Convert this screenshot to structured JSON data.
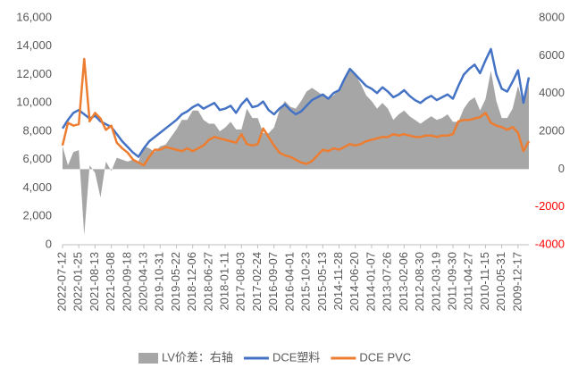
{
  "chart_data": {
    "type": "line",
    "categories": [
      "2022-07-12",
      null,
      null,
      "2022-01-25",
      null,
      null,
      "2021-08-13",
      null,
      null,
      "2021-03-08",
      null,
      null,
      "2020-09-18",
      null,
      null,
      "2020-04-13",
      null,
      null,
      "2019-10-31",
      null,
      null,
      "2019-05-22",
      null,
      null,
      "2018-12-06",
      null,
      null,
      "2018-06-27",
      null,
      null,
      "2018-01-11",
      null,
      null,
      "2017-08-03",
      null,
      null,
      "2017-02-24",
      null,
      null,
      "2016-09-07",
      null,
      null,
      "2016-04-01",
      null,
      null,
      "2015-10-23",
      null,
      null,
      "2015-05-13",
      null,
      null,
      "2014-11-28",
      null,
      null,
      "2014-06-20",
      null,
      null,
      "2014-01-07",
      null,
      null,
      "2013-07-26",
      null,
      null,
      "2013-02-06",
      null,
      null,
      "2012-08-30",
      null,
      null,
      "2012-03-19",
      null,
      null,
      "2011-09-30",
      null,
      null,
      "2011-04-27",
      null,
      null,
      "2010-11-15",
      null,
      null,
      "2010-05-31",
      null,
      null,
      "2009-12-17",
      null,
      null
    ],
    "series": [
      {
        "name": "LV价差：右轴",
        "color": "#a6a6a6",
        "type": "area",
        "axis": "y2",
        "values": [
          1200,
          200,
          900,
          1000,
          -3500,
          200,
          -200,
          -1500,
          400,
          -100,
          600,
          500,
          400,
          500,
          400,
          1200,
          1100,
          900,
          1200,
          1300,
          1700,
          2100,
          2600,
          2600,
          3100,
          3100,
          2600,
          2400,
          2400,
          2000,
          2200,
          2500,
          2100,
          2100,
          3200,
          2700,
          2700,
          1900,
          1900,
          2200,
          3100,
          3600,
          3300,
          3200,
          3600,
          4100,
          4300,
          4100,
          3900,
          3700,
          3900,
          4200,
          4800,
          5300,
          5000,
          4500,
          3900,
          3600,
          3200,
          3500,
          3200,
          2600,
          2900,
          3100,
          2800,
          2600,
          2400,
          2600,
          2800,
          2600,
          2700,
          2900,
          2500,
          2500,
          3200,
          3600,
          3800,
          3100,
          3700,
          5200,
          3600,
          2700,
          2700,
          3200,
          4400,
          3400,
          4500
        ]
      },
      {
        "name": "DCE塑料",
        "color": "#4472c4",
        "type": "line",
        "values": [
          8200,
          8800,
          9300,
          9500,
          9200,
          8900,
          9100,
          8700,
          8500,
          8300,
          7800,
          7300,
          6900,
          6500,
          6200,
          6800,
          7300,
          7600,
          7900,
          8200,
          8500,
          8800,
          9200,
          9400,
          9700,
          9900,
          9600,
          9800,
          10000,
          9500,
          9600,
          9800,
          9300,
          9900,
          10300,
          9700,
          9800,
          10100,
          9500,
          9200,
          9600,
          9900,
          9500,
          9200,
          9400,
          9800,
          10200,
          10400,
          10600,
          10300,
          10700,
          10900,
          11700,
          12400,
          12000,
          11600,
          11200,
          11000,
          10700,
          11100,
          10800,
          10400,
          10600,
          10900,
          10500,
          10200,
          10000,
          10300,
          10500,
          10200,
          10400,
          10600,
          10300,
          11200,
          12000,
          12400,
          12700,
          12100,
          13000,
          13800,
          12000,
          11000,
          10800,
          11500,
          12300,
          10000,
          11800
        ]
      },
      {
        "name": "DCE PVC",
        "color": "#ed7d31",
        "type": "line",
        "values": [
          7000,
          8600,
          8400,
          8500,
          13100,
          8700,
          9300,
          8900,
          8100,
          8400,
          7200,
          6800,
          6500,
          6000,
          5800,
          5600,
          6200,
          6700,
          6700,
          6900,
          6800,
          6700,
          6600,
          6800,
          6600,
          6800,
          7000,
          7400,
          7600,
          7500,
          7400,
          7300,
          7200,
          7800,
          7100,
          7000,
          7100,
          8200,
          7600,
          7000,
          6500,
          6300,
          6200,
          6000,
          5800,
          5700,
          5900,
          6300,
          6700,
          6600,
          6800,
          6700,
          6900,
          7100,
          7000,
          7100,
          7300,
          7400,
          7500,
          7600,
          7600,
          7800,
          7700,
          7800,
          7700,
          7600,
          7600,
          7700,
          7700,
          7600,
          7700,
          7700,
          7800,
          8700,
          8800,
          8800,
          8900,
          9000,
          9300,
          8600,
          8400,
          8300,
          8100,
          8300,
          7900,
          6600,
          7300
        ]
      }
    ],
    "ylim": [
      0,
      16000
    ],
    "yticks": [
      {
        "value": 0,
        "label": "0"
      },
      {
        "value": 2000,
        "label": "2,000"
      },
      {
        "value": 4000,
        "label": "4,000"
      },
      {
        "value": 6000,
        "label": "6,000"
      },
      {
        "value": 8000,
        "label": "8,000"
      },
      {
        "value": 10000,
        "label": "10,000"
      },
      {
        "value": 12000,
        "label": "12,000"
      },
      {
        "value": 14000,
        "label": "14,000"
      },
      {
        "value": 16000,
        "label": "16,000"
      }
    ],
    "y2lim": [
      -4000,
      8000
    ],
    "y2ticks": [
      -4000,
      -2000,
      0,
      2000,
      4000,
      6000,
      8000
    ],
    "y2tick_negative_color": "#ff0000",
    "legend": "bottom"
  }
}
